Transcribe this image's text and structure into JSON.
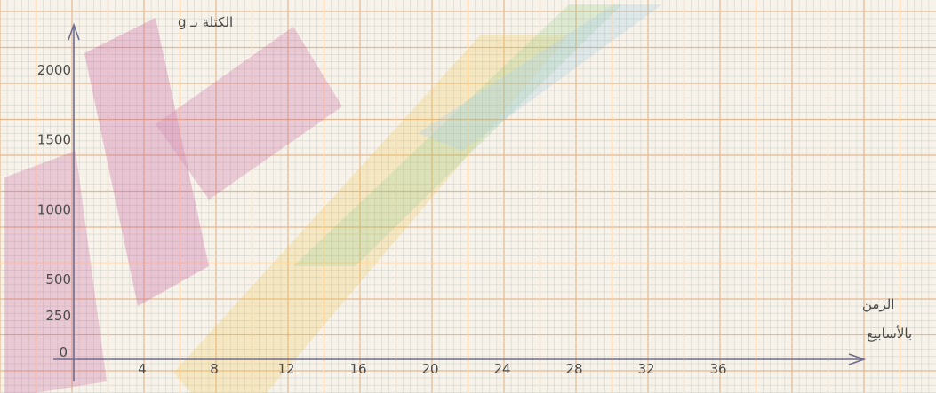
{
  "chart_data": {
    "type": "line",
    "title": "",
    "ylabel": "الكتلة بـ g",
    "xlabel_line1": "الزمن",
    "xlabel_line2": "بالأسابيع",
    "x_ticks": [
      4,
      8,
      12,
      16,
      20,
      24,
      28,
      32,
      36
    ],
    "y_ticks": [
      0,
      250,
      500,
      1000,
      1500,
      2000
    ],
    "xlim": [
      0,
      44
    ],
    "ylim": [
      0,
      2200
    ],
    "grid": true,
    "series": []
  },
  "colors": {
    "paper": "#f7f3ea",
    "minor_grid": "#d4d4cc",
    "major_grid": "#e3b98f",
    "axis": "#6f6c8e",
    "text": "#4a4a4a"
  }
}
